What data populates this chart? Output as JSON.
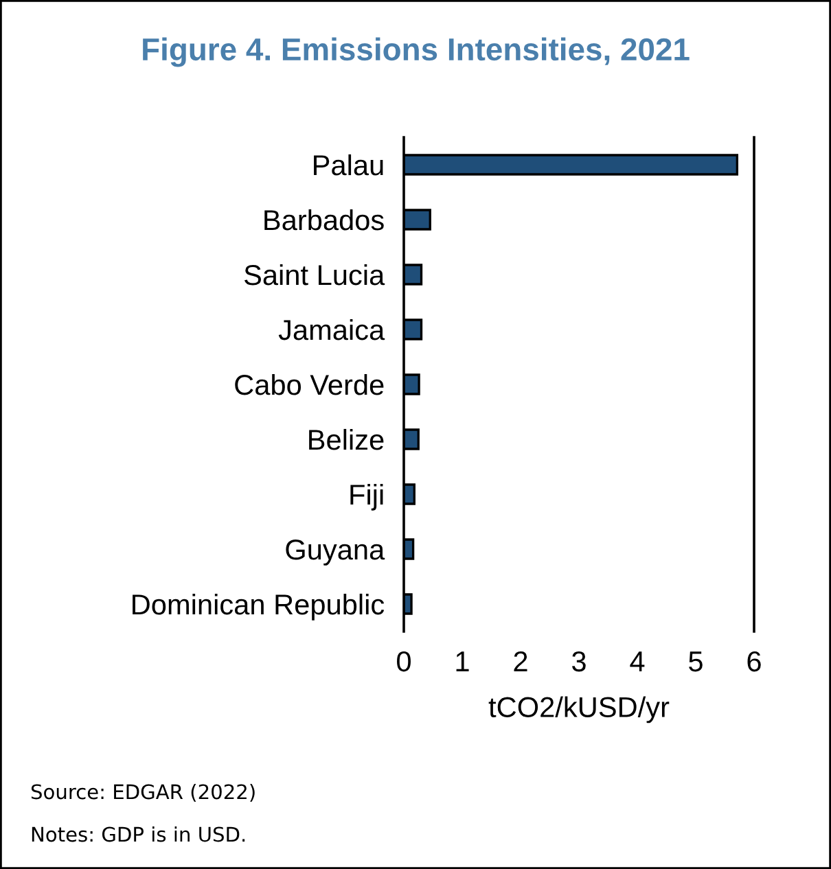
{
  "chart_data": {
    "type": "bar",
    "orientation": "horizontal",
    "title": "Figure 4. Emissions Intensities, 2021",
    "xlabel": "tCO2/kUSD/yr",
    "categories": [
      "Palau",
      "Barbados",
      "Saint Lucia",
      "Jamaica",
      "Cabo Verde",
      "Belize",
      "Fiji",
      "Guyana",
      "Dominican Republic"
    ],
    "values": [
      5.71,
      0.45,
      0.3,
      0.3,
      0.26,
      0.25,
      0.18,
      0.16,
      0.13
    ],
    "color": "#1f4e79",
    "xlim": [
      0,
      6
    ],
    "xticks": [
      0,
      1,
      2,
      3,
      4,
      5,
      6
    ],
    "grid": false,
    "annotations": [
      "Source: EDGAR (2022)",
      "Notes: GDP is in USD."
    ]
  }
}
